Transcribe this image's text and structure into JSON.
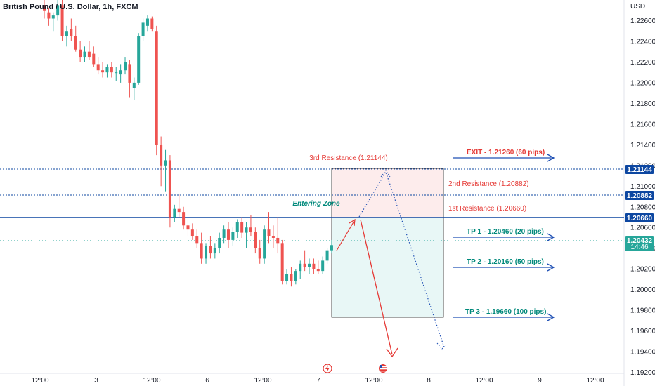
{
  "header": {
    "title": "British Pound / U.S. Dollar, 1h, FXCM"
  },
  "axis": {
    "currency": "USD",
    "y_ticks": [
      "1.22600",
      "1.22400",
      "1.22200",
      "1.22000",
      "1.21800",
      "1.21600",
      "1.21400",
      "1.21200",
      "1.21000",
      "1.20800",
      "1.20600",
      "1.20400",
      "1.20200",
      "1.20000",
      "1.19800",
      "1.19600",
      "1.19400",
      "1.19200"
    ],
    "x_ticks": [
      "12:00",
      "3",
      "12:00",
      "6",
      "12:00",
      "7",
      "12:00",
      "8",
      "12:00",
      "9",
      "12:00"
    ]
  },
  "price_tags": {
    "r3": "1.21144",
    "r2": "1.20882",
    "r1": "1.20660",
    "current": "1.20432",
    "countdown": "14:46"
  },
  "annotations": {
    "r3_label": "3rd Resistance (1.21144)",
    "r2_label": "2nd Resistance (1.20882)",
    "r1_label": "1st Resistance (1.20660)",
    "zone_label": "Entering Zone",
    "exit_label": "EXIT - 1.21260 (60 pips)",
    "tp1_label": "TP 1 - 1.20460 (20 pips)",
    "tp2_label": "TP 2 - 1.20160 (50 pips)",
    "tp3_label": "TP 3 - 1.19660 (100 pips)"
  },
  "colors": {
    "up": "#26a69a",
    "down": "#ef5350",
    "resistance_line": "#0d47a1",
    "current_tag": "#26a69a",
    "annotation_red": "#e53935",
    "annotation_teal": "#00897b",
    "arrow_blue": "#1e4fb4"
  },
  "events": [
    {
      "icon": "lightning-icon",
      "color": "#e53935"
    },
    {
      "icon": "us-flag-icon",
      "color": "#e53935"
    }
  ],
  "chart_data": {
    "type": "candlestick",
    "title": "British Pound / U.S. Dollar, 1h, FXCM",
    "y_unit": "USD",
    "ylim": [
      1.191,
      1.228
    ],
    "resistance_levels": [
      1.21144,
      1.20882,
      1.2066
    ],
    "current_price": 1.20432,
    "exit": 1.2126,
    "take_profits": [
      1.2046,
      1.2016,
      1.1966
    ],
    "ohlc": [
      [
        1.2275,
        1.228,
        1.2262,
        1.227
      ],
      [
        1.2268,
        1.2272,
        1.2255,
        1.2262
      ],
      [
        1.2262,
        1.2268,
        1.225,
        1.2265
      ],
      [
        1.2265,
        1.228,
        1.226,
        1.2275
      ],
      [
        1.2275,
        1.228,
        1.224,
        1.2245
      ],
      [
        1.2245,
        1.2255,
        1.2235,
        1.225
      ],
      [
        1.2252,
        1.2262,
        1.224,
        1.2245
      ],
      [
        1.2245,
        1.2255,
        1.223,
        1.2232
      ],
      [
        1.2232,
        1.224,
        1.222,
        1.2225
      ],
      [
        1.2225,
        1.2235,
        1.222,
        1.223
      ],
      [
        1.223,
        1.224,
        1.2222,
        1.2225
      ],
      [
        1.2228,
        1.2235,
        1.2215,
        1.2218
      ],
      [
        1.2218,
        1.2225,
        1.2208,
        1.2212
      ],
      [
        1.2212,
        1.222,
        1.2205,
        1.221
      ],
      [
        1.221,
        1.2218,
        1.2205,
        1.2215
      ],
      [
        1.2215,
        1.222,
        1.2205,
        1.221
      ],
      [
        1.221,
        1.2215,
        1.2202,
        1.221
      ],
      [
        1.2208,
        1.2218,
        1.22,
        1.2212
      ],
      [
        1.2212,
        1.2225,
        1.2208,
        1.222
      ],
      [
        1.2218,
        1.2222,
        1.2186,
        1.22
      ],
      [
        1.2195,
        1.2205,
        1.2183,
        1.22
      ],
      [
        1.22,
        1.2248,
        1.2198,
        1.2245
      ],
      [
        1.2245,
        1.2262,
        1.224,
        1.2258
      ],
      [
        1.2255,
        1.2265,
        1.225,
        1.2262
      ],
      [
        1.2262,
        1.2264,
        1.225,
        1.2252
      ],
      [
        1.225,
        1.2255,
        1.213,
        1.214
      ],
      [
        1.214,
        1.2148,
        1.21,
        1.212
      ],
      [
        1.212,
        1.2135,
        1.2095,
        1.2125
      ],
      [
        1.2125,
        1.213,
        1.206,
        1.207
      ],
      [
        1.207,
        1.2082,
        1.2065,
        1.2078
      ],
      [
        1.2078,
        1.2092,
        1.207,
        1.2075
      ],
      [
        1.2075,
        1.208,
        1.2058,
        1.2062
      ],
      [
        1.2062,
        1.207,
        1.2052,
        1.2058
      ],
      [
        1.2058,
        1.2064,
        1.2048,
        1.2052
      ],
      [
        1.2052,
        1.2058,
        1.204,
        1.2045
      ],
      [
        1.2045,
        1.2055,
        1.2025,
        1.203
      ],
      [
        1.203,
        1.2045,
        1.2025,
        1.2042
      ],
      [
        1.2042,
        1.2052,
        1.203,
        1.2035
      ],
      [
        1.2035,
        1.2045,
        1.203,
        1.204
      ],
      [
        1.204,
        1.2055,
        1.2035,
        1.205
      ],
      [
        1.205,
        1.2062,
        1.2045,
        1.2058
      ],
      [
        1.2058,
        1.2065,
        1.204,
        1.2048
      ],
      [
        1.2048,
        1.206,
        1.2042,
        1.2056
      ],
      [
        1.2056,
        1.2068,
        1.205,
        1.2065
      ],
      [
        1.2065,
        1.207,
        1.205,
        1.2055
      ],
      [
        1.2055,
        1.2065,
        1.204,
        1.206
      ],
      [
        1.206,
        1.2072,
        1.2052,
        1.2056
      ],
      [
        1.2056,
        1.206,
        1.2035,
        1.204
      ],
      [
        1.204,
        1.2048,
        1.2025,
        1.203
      ],
      [
        1.203,
        1.2062,
        1.2025,
        1.2058
      ],
      [
        1.2058,
        1.2075,
        1.2045,
        1.2052
      ],
      [
        1.2052,
        1.2062,
        1.204,
        1.205
      ],
      [
        1.205,
        1.207,
        1.2035,
        1.2045
      ],
      [
        1.2045,
        1.2048,
        1.2005,
        1.2008
      ],
      [
        1.2008,
        1.202,
        1.2005,
        1.2015
      ],
      [
        1.2015,
        1.2022,
        1.2003,
        1.2008
      ],
      [
        1.2008,
        1.202,
        1.2005,
        1.2018
      ],
      [
        1.2018,
        1.2028,
        1.201,
        1.2025
      ],
      [
        1.2025,
        1.2038,
        1.2018,
        1.2022
      ],
      [
        1.2022,
        1.203,
        1.2015,
        1.2025
      ],
      [
        1.2025,
        1.203,
        1.2015,
        1.202
      ],
      [
        1.202,
        1.2028,
        1.2015,
        1.2018
      ],
      [
        1.2018,
        1.2032,
        1.2015,
        1.2028
      ],
      [
        1.2028,
        1.204,
        1.2025,
        1.2038
      ],
      [
        1.2038,
        1.2048,
        1.2035,
        1.2043
      ]
    ]
  }
}
